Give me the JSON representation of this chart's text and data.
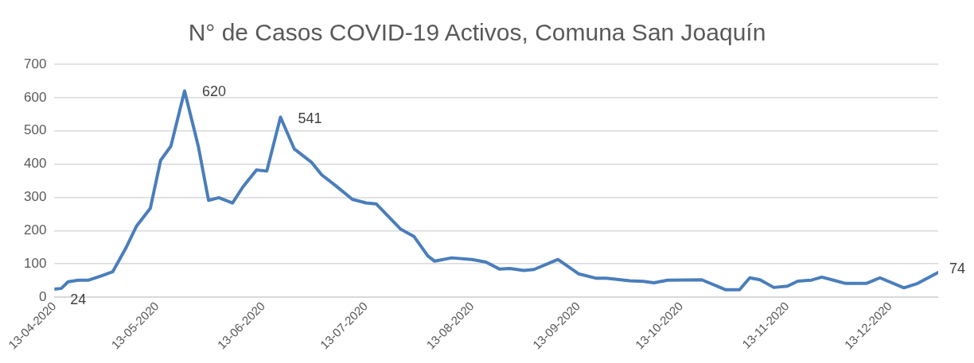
{
  "chart_data": {
    "type": "line",
    "title": "N° de Casos COVID-19 Activos, Comuna San Joaquín",
    "x": [
      "2020-04-13",
      "2020-04-15",
      "2020-04-17",
      "2020-04-20",
      "2020-04-23",
      "2020-04-27",
      "2020-04-30",
      "2020-05-04",
      "2020-05-07",
      "2020-05-11",
      "2020-05-14",
      "2020-05-17",
      "2020-05-21",
      "2020-05-25",
      "2020-05-28",
      "2020-05-31",
      "2020-06-04",
      "2020-06-07",
      "2020-06-11",
      "2020-06-14",
      "2020-06-18",
      "2020-06-22",
      "2020-06-27",
      "2020-06-30",
      "2020-07-04",
      "2020-07-09",
      "2020-07-13",
      "2020-07-16",
      "2020-07-23",
      "2020-07-27",
      "2020-07-31",
      "2020-08-02",
      "2020-08-07",
      "2020-08-13",
      "2020-08-17",
      "2020-08-21",
      "2020-08-24",
      "2020-08-28",
      "2020-08-31",
      "2020-09-07",
      "2020-09-13",
      "2020-09-18",
      "2020-09-21",
      "2020-09-28",
      "2020-10-02",
      "2020-10-05",
      "2020-10-09",
      "2020-10-19",
      "2020-10-26",
      "2020-10-30",
      "2020-11-02",
      "2020-11-05",
      "2020-11-09",
      "2020-11-13",
      "2020-11-16",
      "2020-11-20",
      "2020-11-23",
      "2020-11-26",
      "2020-11-30",
      "2020-12-06",
      "2020-12-10",
      "2020-12-17",
      "2020-12-21",
      "2020-12-27"
    ],
    "series": [
      {
        "color": "#4a7ebb",
        "values": [
          24,
          26,
          46,
          51,
          51,
          65,
          76,
          150,
          214,
          267,
          411,
          454,
          620,
          454,
          291,
          299,
          283,
          331,
          382,
          379,
          541,
          446,
          406,
          368,
          336,
          294,
          283,
          280,
          205,
          182,
          124,
          108,
          118,
          113,
          105,
          84,
          86,
          80,
          83,
          113,
          70,
          57,
          57,
          49,
          47,
          43,
          51,
          52,
          22,
          22,
          58,
          52,
          29,
          33,
          48,
          51,
          60,
          52,
          41,
          41,
          58,
          28,
          41,
          74
        ],
        "value_labels": [
          "24",
          null,
          null,
          null,
          null,
          null,
          null,
          null,
          null,
          null,
          null,
          null,
          "620",
          null,
          null,
          null,
          null,
          null,
          null,
          null,
          "541",
          null,
          null,
          null,
          null,
          null,
          null,
          null,
          null,
          null,
          null,
          null,
          null,
          null,
          null,
          null,
          null,
          null,
          null,
          null,
          null,
          null,
          null,
          null,
          null,
          null,
          null,
          null,
          null,
          null,
          null,
          null,
          null,
          null,
          null,
          null,
          null,
          null,
          null,
          null,
          null,
          null,
          null,
          "74"
        ]
      }
    ],
    "xlim": [
      "2020-04-13",
      "2020-12-27"
    ],
    "xticks": [
      {
        "value": "2020-04-13",
        "label": "13-04-2020"
      },
      {
        "value": "2020-05-13",
        "label": "13-05-2020"
      },
      {
        "value": "2020-06-13",
        "label": "13-06-2020"
      },
      {
        "value": "2020-07-13",
        "label": "13-07-2020"
      },
      {
        "value": "2020-08-13",
        "label": "13-08-2020"
      },
      {
        "value": "2020-09-13",
        "label": "13-09-2020"
      },
      {
        "value": "2020-10-13",
        "label": "13-10-2020"
      },
      {
        "value": "2020-11-13",
        "label": "13-11-2020"
      },
      {
        "value": "2020-12-13",
        "label": "13-12-2020"
      }
    ],
    "ylim": [
      0,
      700
    ],
    "yticks": [
      0,
      100,
      200,
      300,
      400,
      500,
      600,
      700
    ],
    "grid": "y",
    "legend": false,
    "marker": "none",
    "line_style": "solid"
  }
}
